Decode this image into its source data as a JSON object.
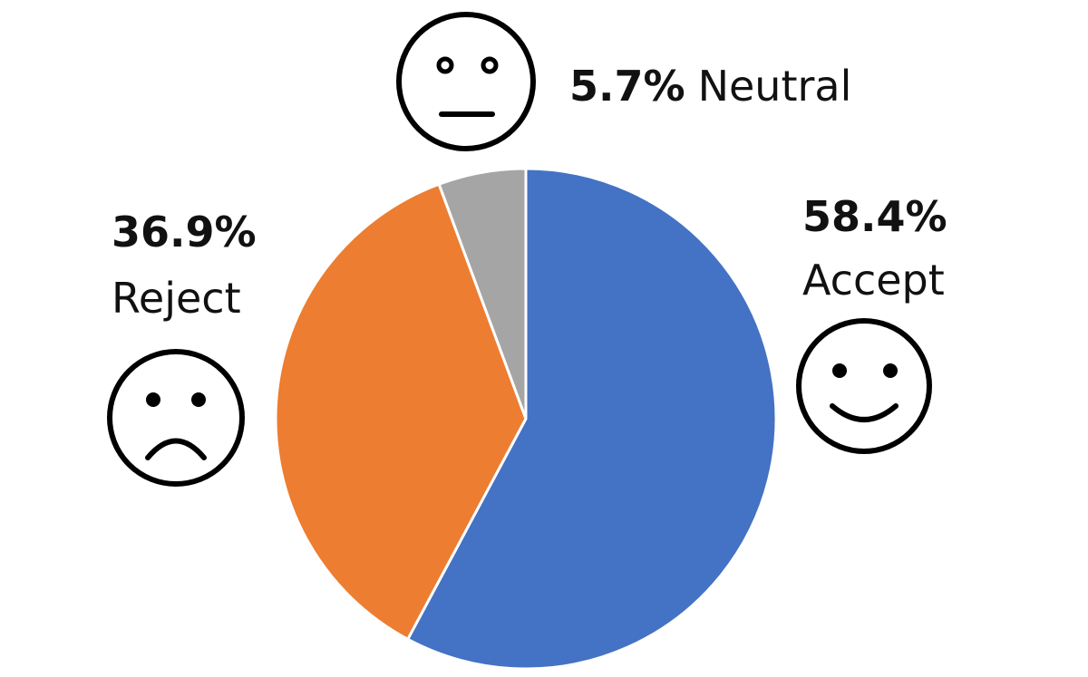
{
  "chart_data": {
    "type": "pie",
    "start_angle_deg": 0,
    "direction": "clockwise",
    "slices": [
      {
        "label": "Accept",
        "value": 58.4,
        "value_label": "58.4%",
        "color": "#4472C4",
        "icon": "smiley-face-icon"
      },
      {
        "label": "Reject",
        "value": 36.9,
        "value_label": "36.9%",
        "color": "#ED7D31",
        "icon": "frowning-face-icon"
      },
      {
        "label": "Neutral",
        "value": 5.7,
        "value_label": "5.7%",
        "color": "#A5A5A5",
        "icon": "neutral-face-icon"
      }
    ],
    "slice_border_color": "#FFFFFF",
    "legend": "none"
  }
}
